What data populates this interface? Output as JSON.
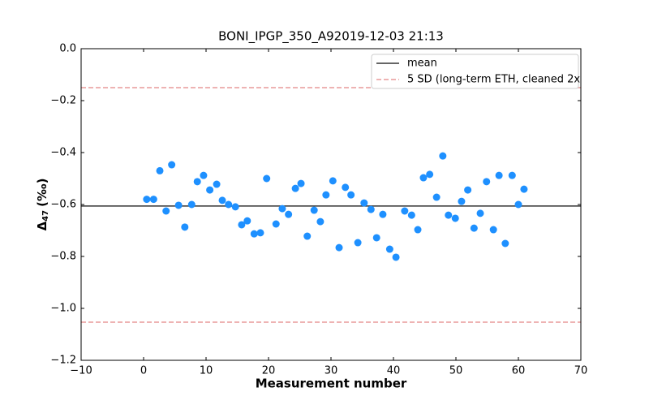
{
  "chart_data": {
    "type": "scatter",
    "title": "BONI_IPGP_350_A92019-12-03 21:13",
    "xlabel": "Measurement number",
    "ylabel": {
      "symbol": "Δ",
      "subscript": "47",
      "unit": "(‰)"
    },
    "xlim": [
      -10,
      70
    ],
    "ylim": [
      -1.2,
      0
    ],
    "xticks": [
      {
        "value": -10,
        "label": "−10"
      },
      0,
      10,
      20,
      30,
      40,
      50,
      60,
      70
    ],
    "yticks": [
      {
        "value": 0,
        "label": "0.0"
      },
      {
        "value": -0.2,
        "label": "−0.2"
      },
      {
        "value": -0.4,
        "label": "−0.4"
      },
      {
        "value": -0.6,
        "label": "−0.6"
      },
      {
        "value": -0.8,
        "label": "−0.8"
      },
      {
        "value": -1.0,
        "label": "−1.0"
      },
      {
        "value": -1.2,
        "label": "−1.2"
      }
    ],
    "color": "#1e90ff",
    "x": [
      0.5,
      1.6,
      2.6,
      3.6,
      4.5,
      5.6,
      6.6,
      7.7,
      8.6,
      9.6,
      10.6,
      11.7,
      12.6,
      13.6,
      14.7,
      15.7,
      16.6,
      17.7,
      18.7,
      19.7,
      21.2,
      22.2,
      23.2,
      24.3,
      25.2,
      26.2,
      27.3,
      28.3,
      29.2,
      30.3,
      31.3,
      32.3,
      33.2,
      34.3,
      35.3,
      36.4,
      37.3,
      38.3,
      39.4,
      40.4,
      41.8,
      42.9,
      43.9,
      44.8,
      45.8,
      46.9,
      47.9,
      48.8,
      49.9,
      50.9,
      51.9,
      52.9,
      53.9,
      54.9,
      56.0,
      56.9,
      57.9,
      59.0,
      60.0,
      60.9
    ],
    "values": [
      -0.58,
      -0.58,
      -0.47,
      -0.625,
      -0.447,
      -0.603,
      -0.687,
      -0.6,
      -0.512,
      -0.488,
      -0.544,
      -0.522,
      -0.584,
      -0.6,
      -0.609,
      -0.678,
      -0.663,
      -0.713,
      -0.709,
      -0.5,
      -0.675,
      -0.616,
      -0.638,
      -0.538,
      -0.519,
      -0.722,
      -0.622,
      -0.666,
      -0.563,
      -0.509,
      -0.766,
      -0.534,
      -0.563,
      -0.747,
      -0.594,
      -0.619,
      -0.728,
      -0.638,
      -0.772,
      -0.803,
      -0.625,
      -0.641,
      -0.697,
      -0.497,
      -0.484,
      -0.572,
      -0.413,
      -0.641,
      -0.653,
      -0.588,
      -0.544,
      -0.691,
      -0.634,
      -0.512,
      -0.697,
      -0.488,
      -0.75,
      -0.488,
      -0.6,
      -0.541
    ],
    "lines": [
      {
        "name": "mean",
        "value": -0.606,
        "color": "#333333",
        "dashed": false
      },
      {
        "name": "5 SD (long-term ETH, cleaned 2x",
        "values": [
          -0.15,
          -1.053
        ],
        "color": "#e89a9a",
        "dashed": true
      }
    ],
    "legend": "upper right"
  }
}
